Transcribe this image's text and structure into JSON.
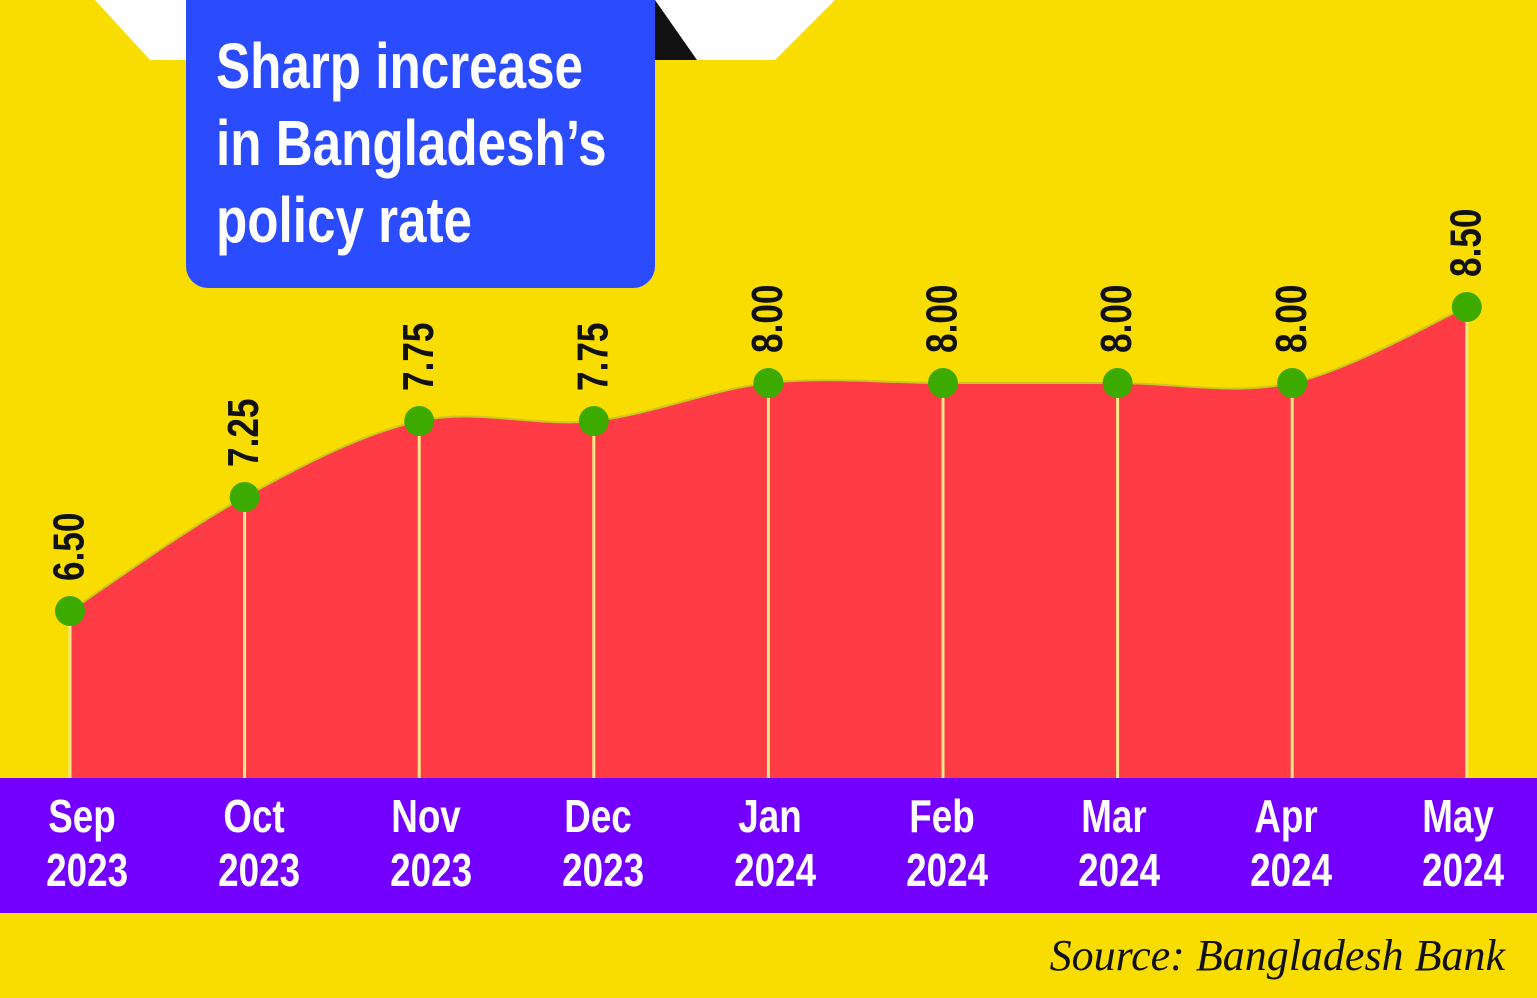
{
  "chart_data": {
    "type": "area",
    "title": [
      "Sharp increase",
      "in Bangladesh’s",
      "policy rate"
    ],
    "categories": [
      "Sep 2023",
      "Oct 2023",
      "Nov 2023",
      "Dec 2023",
      "Jan 2024",
      "Feb 2024",
      "Mar 2024",
      "Apr 2024",
      "May 2024"
    ],
    "values": [
      6.5,
      7.25,
      7.75,
      7.75,
      8,
      8,
      8,
      8,
      8.5
    ],
    "value_labels": [
      "6.50",
      "7.25",
      "7.75",
      "7.75",
      "8.00",
      "8.00",
      "8.00",
      "8.00",
      "8.50"
    ],
    "color": "#ff3c46",
    "marker_color": "#3daa00",
    "source": "Source: Bangladesh Bank"
  }
}
